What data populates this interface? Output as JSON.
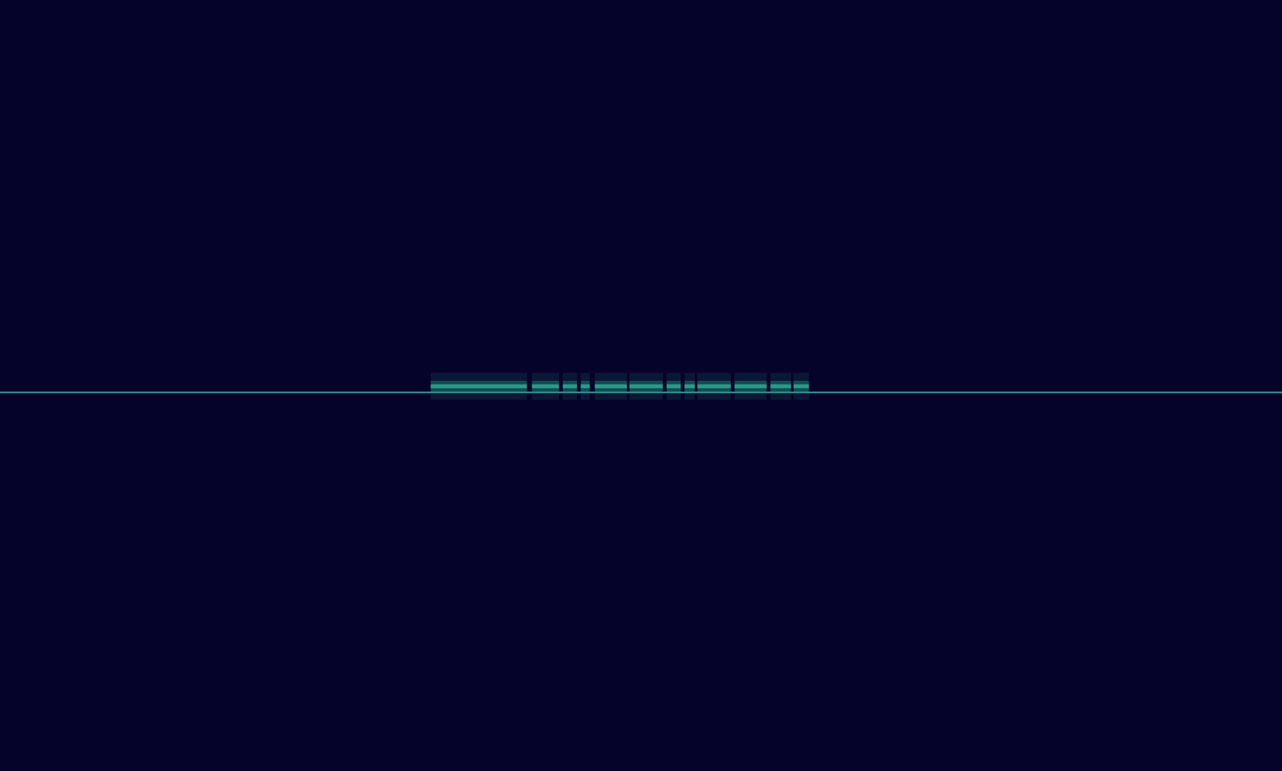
{
  "chart_data": {
    "type": "spectrogram",
    "tick_labels": false,
    "xlim": [
      0,
      100
    ],
    "ylim": [
      0,
      100
    ],
    "carrier": {
      "y": 49.1,
      "color": "#2e9b8e"
    },
    "bursts": {
      "y": 49.9,
      "color": "#27a88c",
      "segments": [
        [
          33.6,
          41.1
        ],
        [
          41.5,
          43.6
        ],
        [
          43.9,
          45.0
        ],
        [
          45.3,
          46.0
        ],
        [
          46.4,
          48.9
        ],
        [
          49.1,
          51.7
        ],
        [
          52.0,
          53.1
        ],
        [
          53.4,
          54.2
        ],
        [
          54.4,
          57.0
        ],
        [
          57.3,
          59.8
        ],
        [
          60.1,
          61.7
        ],
        [
          61.9,
          63.1
        ]
      ]
    }
  }
}
